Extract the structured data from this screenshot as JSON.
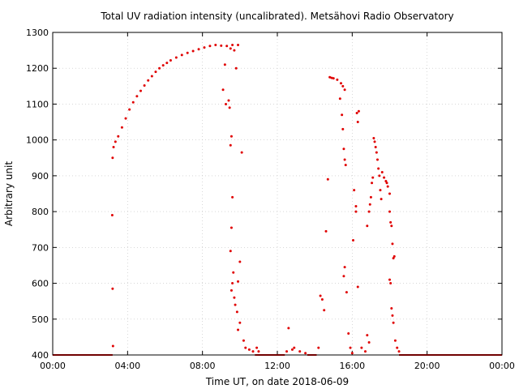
{
  "chart_data": {
    "type": "scatter",
    "title": "Total UV radiation intensity (uncalibrated). Metsähovi Radio Observatory",
    "xlabel": "Time UT, on date 2018-06-09",
    "ylabel": "Arbitrary unit",
    "xlim_hours": [
      0,
      24
    ],
    "ylim": [
      400,
      1300
    ],
    "x_ticks": [
      {
        "hour": 0,
        "label": "00:00"
      },
      {
        "hour": 4,
        "label": "04:00"
      },
      {
        "hour": 8,
        "label": "08:00"
      },
      {
        "hour": 12,
        "label": "12:00"
      },
      {
        "hour": 16,
        "label": "16:00"
      },
      {
        "hour": 20,
        "label": "20:00"
      },
      {
        "hour": 24,
        "label": "00:00"
      }
    ],
    "y_ticks": [
      400,
      500,
      600,
      700,
      800,
      900,
      1000,
      1100,
      1200,
      1300
    ],
    "grid": true,
    "marker_color": "#e00000",
    "series": [
      {
        "points": [
          [
            3.25,
            980
          ],
          [
            3.35,
            995
          ],
          [
            3.5,
            1010
          ],
          [
            3.7,
            1035
          ],
          [
            3.9,
            1060
          ],
          [
            4.1,
            1085
          ],
          [
            4.3,
            1105
          ],
          [
            4.5,
            1122
          ],
          [
            4.7,
            1137
          ],
          [
            4.9,
            1152
          ],
          [
            5.1,
            1166
          ],
          [
            5.3,
            1178
          ],
          [
            5.5,
            1190
          ],
          [
            5.7,
            1200
          ],
          [
            5.9,
            1208
          ],
          [
            6.1,
            1215
          ],
          [
            6.3,
            1222
          ],
          [
            6.6,
            1230
          ],
          [
            6.9,
            1237
          ],
          [
            7.2,
            1243
          ],
          [
            7.5,
            1248
          ],
          [
            7.8,
            1253
          ],
          [
            8.1,
            1258
          ],
          [
            8.4,
            1262
          ],
          [
            8.7,
            1265
          ],
          [
            9.0,
            1263
          ],
          [
            9.3,
            1262
          ],
          [
            9.6,
            1265
          ],
          [
            9.9,
            1265
          ],
          [
            3.2,
            950
          ],
          [
            3.18,
            790
          ],
          [
            3.2,
            585
          ],
          [
            3.22,
            425
          ],
          [
            9.2,
            1210
          ],
          [
            9.1,
            1140
          ],
          [
            9.25,
            1100
          ],
          [
            9.4,
            1110
          ],
          [
            9.45,
            1090
          ],
          [
            9.5,
            985
          ],
          [
            9.55,
            1010
          ],
          [
            9.6,
            840
          ],
          [
            9.55,
            755
          ],
          [
            9.5,
            690
          ],
          [
            9.65,
            630
          ],
          [
            9.6,
            600
          ],
          [
            9.55,
            580
          ],
          [
            9.7,
            560
          ],
          [
            9.75,
            540
          ],
          [
            9.85,
            520
          ],
          [
            10.0,
            660
          ],
          [
            9.9,
            605
          ],
          [
            10.1,
            965
          ],
          [
            9.8,
            1200
          ],
          [
            9.7,
            1250
          ],
          [
            9.5,
            1255
          ],
          [
            9.9,
            470
          ],
          [
            10.0,
            490
          ],
          [
            10.2,
            440
          ],
          [
            10.3,
            420
          ],
          [
            10.5,
            415
          ],
          [
            10.7,
            410
          ],
          [
            10.9,
            420
          ],
          [
            11.0,
            410
          ],
          [
            12.6,
            475
          ],
          [
            12.5,
            410
          ],
          [
            12.8,
            415
          ],
          [
            12.9,
            420
          ],
          [
            13.2,
            410
          ],
          [
            13.5,
            405
          ],
          [
            14.2,
            420
          ],
          [
            14.3,
            565
          ],
          [
            14.4,
            555
          ],
          [
            14.5,
            525
          ],
          [
            14.6,
            745
          ],
          [
            14.7,
            890
          ],
          [
            14.8,
            1175
          ],
          [
            14.9,
            1173
          ],
          [
            15.0,
            1172
          ],
          [
            15.2,
            1168
          ],
          [
            15.4,
            1158
          ],
          [
            15.5,
            1150
          ],
          [
            15.6,
            1140
          ],
          [
            15.35,
            1115
          ],
          [
            15.45,
            1070
          ],
          [
            15.5,
            1030
          ],
          [
            15.55,
            975
          ],
          [
            15.6,
            945
          ],
          [
            15.65,
            930
          ],
          [
            15.55,
            620
          ],
          [
            15.6,
            645
          ],
          [
            15.7,
            575
          ],
          [
            15.8,
            460
          ],
          [
            15.9,
            420
          ],
          [
            16.0,
            405
          ],
          [
            16.05,
            720
          ],
          [
            16.1,
            860
          ],
          [
            16.2,
            800
          ],
          [
            16.2,
            815
          ],
          [
            16.25,
            1075
          ],
          [
            16.3,
            1050
          ],
          [
            16.35,
            1080
          ],
          [
            16.3,
            590
          ],
          [
            16.5,
            420
          ],
          [
            16.7,
            410
          ],
          [
            16.8,
            455
          ],
          [
            16.9,
            435
          ],
          [
            16.8,
            760
          ],
          [
            16.9,
            800
          ],
          [
            16.95,
            820
          ],
          [
            17.0,
            840
          ],
          [
            17.05,
            880
          ],
          [
            17.1,
            895
          ],
          [
            17.15,
            1005
          ],
          [
            17.2,
            995
          ],
          [
            17.25,
            980
          ],
          [
            17.3,
            965
          ],
          [
            17.35,
            945
          ],
          [
            17.4,
            920
          ],
          [
            17.45,
            900
          ],
          [
            17.5,
            860
          ],
          [
            17.55,
            835
          ],
          [
            17.6,
            910
          ],
          [
            17.7,
            895
          ],
          [
            17.8,
            885
          ],
          [
            17.85,
            880
          ],
          [
            17.9,
            870
          ],
          [
            18.0,
            850
          ],
          [
            18.0,
            800
          ],
          [
            18.05,
            770
          ],
          [
            18.1,
            760
          ],
          [
            18.15,
            710
          ],
          [
            18.2,
            670
          ],
          [
            18.25,
            675
          ],
          [
            18.0,
            610
          ],
          [
            18.05,
            600
          ],
          [
            18.1,
            530
          ],
          [
            18.15,
            510
          ],
          [
            18.2,
            490
          ],
          [
            18.3,
            440
          ],
          [
            18.4,
            420
          ],
          [
            18.5,
            410
          ]
        ],
        "baseline_segments": [
          [
            0.0,
            3.2,
            400
          ],
          [
            10.8,
            12.4,
            400
          ],
          [
            13.6,
            14.1,
            400
          ],
          [
            18.5,
            24.0,
            400
          ]
        ]
      }
    ]
  }
}
